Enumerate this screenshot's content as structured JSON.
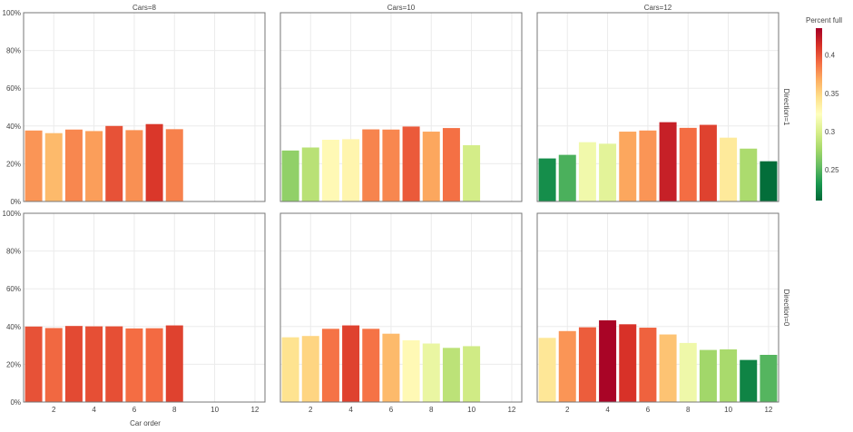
{
  "chart_data": {
    "type": "bar",
    "facet_col_label": "Cars",
    "facet_row_label": "Direction",
    "xlabel": "Car order",
    "ylabel": "",
    "ylim": [
      0,
      100
    ],
    "y_ticks": [
      "0%",
      "20%",
      "40%",
      "60%",
      "80%",
      "100%"
    ],
    "x_ticks": [
      2,
      4,
      6,
      8,
      10,
      12
    ],
    "grid": true,
    "colorbar": {
      "title": "Percent full",
      "min": 0.21,
      "max": 0.435,
      "ticks": [
        "0.25",
        "0.3",
        "0.35",
        "0.4"
      ],
      "colorscale": [
        "#006837",
        "#1a9850",
        "#66bd63",
        "#a6d96a",
        "#d9ef8b",
        "#ffffbf",
        "#fee08b",
        "#fdae61",
        "#f46d43",
        "#d73027",
        "#a50026"
      ]
    },
    "facets": {
      "columns": [
        "Cars=8",
        "Cars=10",
        "Cars=12"
      ],
      "rows": [
        "Direction=1",
        "Direction=0"
      ]
    },
    "panels": [
      {
        "row": 0,
        "col": 0,
        "x": [
          1,
          2,
          3,
          4,
          5,
          6,
          7,
          8
        ],
        "values": [
          37.6,
          36.2,
          38.1,
          37.3,
          40.0,
          37.8,
          41.0,
          38.3
        ]
      },
      {
        "row": 0,
        "col": 1,
        "x": [
          1,
          2,
          3,
          4,
          5,
          6,
          7,
          8,
          9,
          10
        ],
        "values": [
          27.0,
          28.6,
          32.7,
          33.0,
          38.2,
          38.1,
          39.7,
          37.0,
          38.9,
          29.8
        ]
      },
      {
        "row": 0,
        "col": 2,
        "x": [
          1,
          2,
          3,
          4,
          5,
          6,
          7,
          8,
          9,
          10,
          11,
          12
        ],
        "values": [
          22.8,
          24.7,
          31.4,
          30.6,
          37.0,
          37.6,
          42.0,
          39.0,
          40.6,
          33.8,
          28.0,
          21.3
        ]
      },
      {
        "row": 1,
        "col": 0,
        "x": [
          1,
          2,
          3,
          4,
          5,
          6,
          7,
          8
        ],
        "values": [
          40.0,
          39.2,
          40.3,
          40.1,
          40.1,
          39.0,
          39.1,
          40.6
        ]
      },
      {
        "row": 1,
        "col": 1,
        "x": [
          1,
          2,
          3,
          4,
          5,
          6,
          7,
          8,
          9,
          10
        ],
        "values": [
          34.3,
          35.0,
          38.8,
          40.6,
          38.8,
          36.2,
          32.7,
          31.0,
          28.7,
          29.6
        ]
      },
      {
        "row": 1,
        "col": 2,
        "x": [
          1,
          2,
          3,
          4,
          5,
          6,
          7,
          8,
          9,
          10,
          11,
          12
        ],
        "values": [
          34.0,
          37.6,
          39.6,
          43.3,
          41.2,
          39.4,
          35.8,
          31.3,
          27.6,
          27.9,
          22.3,
          25.0
        ]
      }
    ]
  }
}
